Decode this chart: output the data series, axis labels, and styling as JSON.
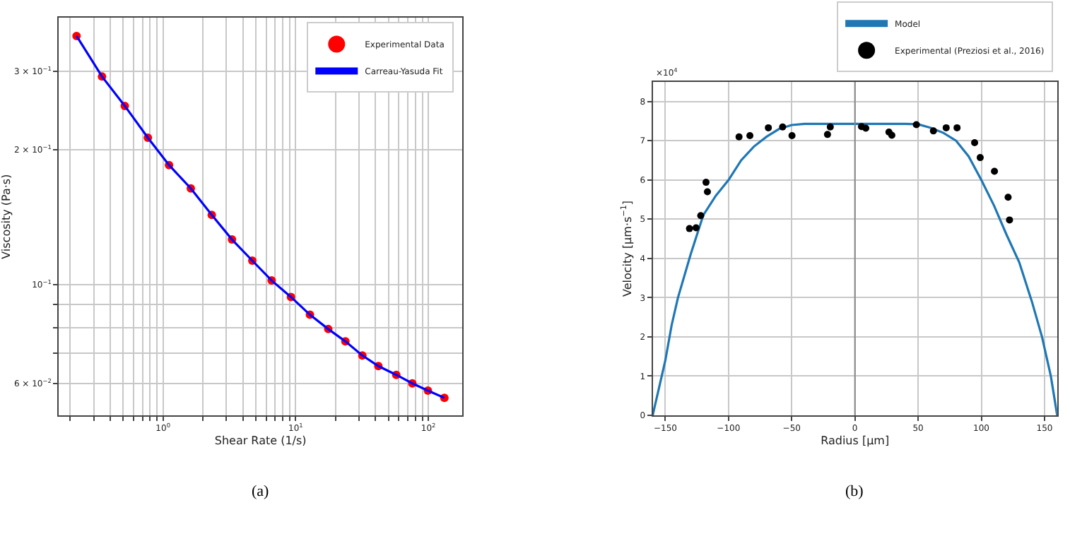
{
  "chart_data": [
    {
      "type": "line",
      "xlabel": "Shear Rate (1/s)",
      "ylabel": "Viscosity (Pa·s)",
      "log": "xy",
      "grid": true,
      "legend": "top right",
      "annotations": [
        "(a)"
      ],
      "xlim": [
        0.164,
        180
      ],
      "ylim": [
        0.0509,
        0.395
      ],
      "xticks": [
        {
          "value": 0.2,
          "label": null
        },
        {
          "value": 0.3,
          "label": null
        },
        {
          "value": 0.4,
          "label": null
        },
        {
          "value": 0.5,
          "label": null
        },
        {
          "value": 0.6,
          "label": null
        },
        {
          "value": 0.7,
          "label": null
        },
        {
          "value": 0.8,
          "label": null
        },
        {
          "value": 0.9,
          "label": null
        },
        {
          "value": 1,
          "label": "10$^{0}$"
        },
        {
          "value": 2,
          "label": null
        },
        {
          "value": 3,
          "label": null
        },
        {
          "value": 4,
          "label": null
        },
        {
          "value": 5,
          "label": null
        },
        {
          "value": 6,
          "label": null
        },
        {
          "value": 7,
          "label": null
        },
        {
          "value": 8,
          "label": null
        },
        {
          "value": 9,
          "label": null
        },
        {
          "value": 10,
          "label": "10$^{1}$"
        },
        {
          "value": 20,
          "label": null
        },
        {
          "value": 30,
          "label": null
        },
        {
          "value": 40,
          "label": null
        },
        {
          "value": 50,
          "label": null
        },
        {
          "value": 60,
          "label": null
        },
        {
          "value": 70,
          "label": null
        },
        {
          "value": 80,
          "label": null
        },
        {
          "value": 90,
          "label": null
        },
        {
          "value": 100,
          "label": "10$^{2}$"
        }
      ],
      "yticks": [
        {
          "value": 0.06,
          "label": "6 × 10$^{−2}$"
        },
        {
          "value": 0.07,
          "label": null
        },
        {
          "value": 0.08,
          "label": null
        },
        {
          "value": 0.09,
          "label": null
        },
        {
          "value": 0.1,
          "label": "10$^{−1}$"
        },
        {
          "value": 0.2,
          "label": "2 × 10$^{−1}$"
        },
        {
          "value": 0.3,
          "label": "3 × 10$^{−1}$"
        }
      ],
      "x": [
        0.223,
        0.347,
        0.515,
        0.769,
        1.11,
        1.62,
        2.33,
        3.31,
        4.71,
        6.59,
        9.21,
        12.8,
        17.6,
        23.7,
        31.8,
        42.0,
        57.3,
        75.7,
        99.2,
        132
      ],
      "series": [
        {
          "name": "Experimental Data",
          "type": "scatter",
          "marker": "circle",
          "color": "#ff0000",
          "values": [
            0.36,
            0.292,
            0.251,
            0.213,
            0.185,
            0.164,
            0.143,
            0.126,
            0.113,
            0.102,
            0.0937,
            0.0855,
            0.0794,
            0.0745,
            0.0693,
            0.0656,
            0.0627,
            0.06,
            0.0578,
            0.0557
          ]
        },
        {
          "name": "Carreau-Yasuda Fit",
          "marker": "none",
          "color": "#0000ff",
          "values": [
            0.36,
            0.292,
            0.251,
            0.213,
            0.185,
            0.164,
            0.143,
            0.126,
            0.113,
            0.102,
            0.0937,
            0.0855,
            0.0794,
            0.0745,
            0.0693,
            0.0656,
            0.0627,
            0.06,
            0.0578,
            0.0557
          ]
        }
      ]
    },
    {
      "type": "line",
      "xlabel": "Radius [μm]",
      "ylabel": "Velocity [μm·s$^{−1}$]",
      "grid": true,
      "legend": "top right",
      "annotations": [
        "×10$^{4}$",
        "(b)"
      ],
      "xlim": [
        -160,
        160
      ],
      "ylim": [
        0,
        8.5
      ],
      "xticks": [
        -150,
        -100,
        -50,
        0,
        50,
        100,
        150
      ],
      "yticks": [
        0,
        1,
        2,
        3,
        4,
        5,
        6,
        7,
        8
      ],
      "ref_lines": [
        {
          "axis": "x",
          "value": 0,
          "color": "#888888"
        }
      ],
      "series": [
        {
          "name": "Model",
          "marker": "none",
          "color": "#1f77b4",
          "x": [
            -160,
            -155,
            -150,
            -145,
            -140,
            -130,
            -120,
            -110,
            -100,
            -90,
            -80,
            -70,
            -60,
            -50,
            -40,
            0,
            40,
            50,
            60,
            70,
            80,
            90,
            100,
            110,
            120,
            130,
            140,
            148,
            155,
            160
          ],
          "values": [
            0,
            0.7,
            1.4,
            2.3,
            3.0,
            4.1,
            5.1,
            5.6,
            6.0,
            6.5,
            6.85,
            7.1,
            7.3,
            7.4,
            7.43,
            7.43,
            7.43,
            7.42,
            7.33,
            7.2,
            7.0,
            6.6,
            6.0,
            5.35,
            4.6,
            3.9,
            2.9,
            2.0,
            1.0,
            0
          ]
        },
        {
          "name": "Experimental (Preziosi et al., 2016)",
          "type": "scatter",
          "marker": "circle",
          "color": "#000000",
          "x": [
            -130.9,
            -125.7,
            -122.0,
            -117.8,
            -116.7,
            -91.7,
            -83.1,
            -68.5,
            -57.2,
            -49.8,
            -21.7,
            -19.5,
            5.2,
            8.6,
            26.9,
            29.2,
            48.6,
            62.1,
            72.2,
            80.8,
            94.7,
            99.1,
            110.4,
            121.2,
            122.3
          ],
          "values": [
            4.76,
            4.78,
            5.09,
            5.94,
            5.7,
            7.1,
            7.13,
            7.33,
            7.35,
            7.13,
            7.16,
            7.35,
            7.36,
            7.32,
            7.22,
            7.14,
            7.41,
            7.25,
            7.33,
            7.33,
            6.95,
            6.57,
            6.22,
            5.56,
            4.98
          ]
        }
      ]
    }
  ]
}
